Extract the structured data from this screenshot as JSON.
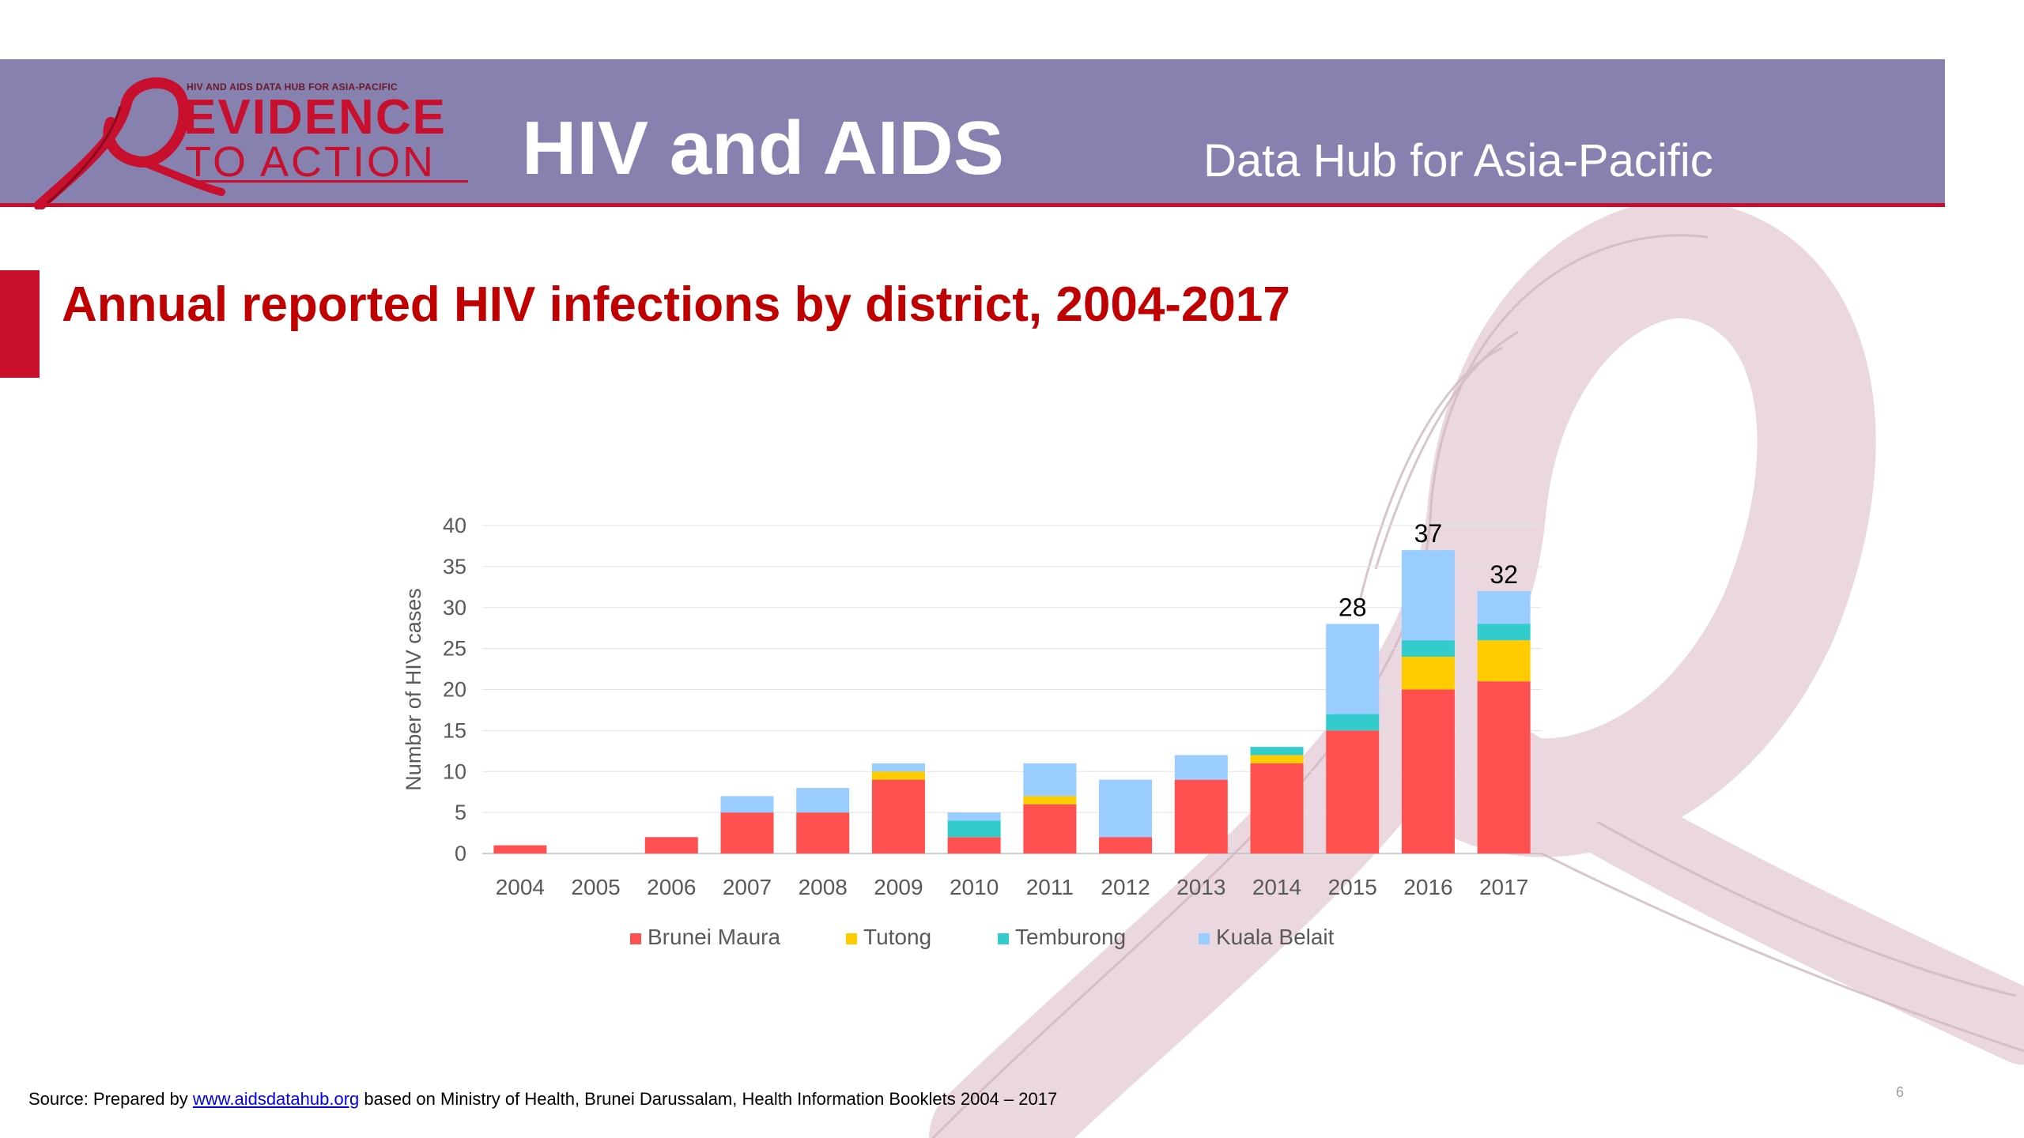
{
  "header": {
    "logo_small": "HIV AND AIDS DATA HUB FOR ASIA-PACIFIC",
    "logo_line1": "EVIDENCE",
    "logo_line2": "TO ACTION",
    "title": "HIV and AIDS",
    "subtitle": "Data Hub for Asia-Pacific"
  },
  "slide": {
    "title": "Annual reported HIV infections by district, 2004-2017",
    "page_number": "6"
  },
  "source": {
    "prefix": "Source: Prepared by ",
    "link_text": "www.aidsdatahub.org",
    "suffix": " based on Ministry of Health, Brunei Darussalam, Health Information Booklets 2004 – 2017"
  },
  "colors": {
    "header_bg": "#8781b0",
    "accent_red": "#c8102e",
    "ribbon_bg": "#ead7df"
  },
  "chart_data": {
    "type": "bar",
    "stacked": true,
    "title": "",
    "xlabel": "",
    "ylabel": "Number of HIV cases",
    "ylim": [
      0,
      40
    ],
    "yticks": [
      0,
      5,
      10,
      15,
      20,
      25,
      30,
      35,
      40
    ],
    "grid": true,
    "legend_position": "bottom",
    "categories": [
      "2004",
      "2005",
      "2006",
      "2007",
      "2008",
      "2009",
      "2010",
      "2011",
      "2012",
      "2013",
      "2014",
      "2015",
      "2016",
      "2017"
    ],
    "series": [
      {
        "name": "Brunei Maura",
        "color": "#ff5050",
        "values": [
          1,
          0,
          2,
          5,
          5,
          9,
          2,
          6,
          2,
          9,
          11,
          15,
          20,
          21
        ]
      },
      {
        "name": "Tutong",
        "color": "#ffcc00",
        "values": [
          0,
          0,
          0,
          0,
          0,
          1,
          0,
          1,
          0,
          0,
          1,
          0,
          4,
          5
        ]
      },
      {
        "name": "Temburong",
        "color": "#33cccc",
        "values": [
          0,
          0,
          0,
          0,
          0,
          0,
          2,
          0,
          0,
          0,
          1,
          2,
          2,
          2
        ]
      },
      {
        "name": "Kuala Belait",
        "color": "#99ccff",
        "values": [
          0,
          0,
          0,
          2,
          3,
          1,
          1,
          4,
          7,
          3,
          0,
          11,
          11,
          4
        ]
      }
    ],
    "data_labels": [
      {
        "category": "2015",
        "value": "28"
      },
      {
        "category": "2016",
        "value": "37"
      },
      {
        "category": "2017",
        "value": "32"
      }
    ]
  }
}
